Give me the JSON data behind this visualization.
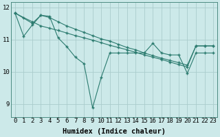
{
  "xlabel": "Humidex (Indice chaleur)",
  "background_color": "#cce9e9",
  "grid_color": "#aacccc",
  "line_color": "#2a7a6e",
  "xlim": [
    -0.5,
    23.5
  ],
  "ylim": [
    8.6,
    12.15
  ],
  "yticks": [
    9,
    10,
    11,
    12
  ],
  "xticks": [
    0,
    1,
    2,
    3,
    4,
    5,
    6,
    7,
    8,
    9,
    10,
    11,
    12,
    13,
    14,
    15,
    16,
    17,
    18,
    19,
    20,
    21,
    22,
    23
  ],
  "series1_x": [
    0,
    1,
    2,
    3,
    4,
    5,
    6,
    7,
    8,
    9,
    10,
    11,
    12,
    13,
    14,
    15,
    16,
    17,
    18,
    19,
    20,
    21,
    22,
    23
  ],
  "series1_y": [
    11.82,
    11.1,
    11.45,
    11.75,
    11.72,
    11.05,
    10.78,
    10.45,
    10.25,
    8.88,
    9.82,
    10.58,
    10.58,
    10.58,
    10.58,
    10.58,
    10.88,
    10.58,
    10.52,
    10.52,
    9.95,
    10.58,
    10.58,
    10.58
  ],
  "series2_x": [
    0,
    1,
    2,
    3,
    4,
    5,
    6,
    7,
    8,
    9,
    10,
    11,
    12,
    13,
    14,
    15,
    16,
    17,
    18,
    19,
    20,
    21,
    22,
    23
  ],
  "series2_y": [
    11.82,
    11.68,
    11.55,
    11.42,
    11.35,
    11.28,
    11.2,
    11.12,
    11.05,
    10.98,
    10.9,
    10.82,
    10.75,
    10.68,
    10.6,
    10.52,
    10.45,
    10.38,
    10.3,
    10.22,
    10.15,
    10.8,
    10.8,
    10.8
  ],
  "series3_x": [
    0,
    2,
    3,
    4,
    5,
    6,
    7,
    8,
    9,
    10,
    11,
    12,
    13,
    14,
    15,
    16,
    17,
    18,
    19,
    20,
    21,
    22,
    23
  ],
  "series3_y": [
    11.82,
    11.5,
    11.75,
    11.68,
    11.55,
    11.42,
    11.32,
    11.22,
    11.12,
    11.02,
    10.95,
    10.85,
    10.75,
    10.68,
    10.58,
    10.5,
    10.42,
    10.35,
    10.28,
    10.2,
    10.8,
    10.8,
    10.8
  ],
  "font_family": "monospace",
  "tick_fontsize": 6.5,
  "label_fontsize": 7.5
}
